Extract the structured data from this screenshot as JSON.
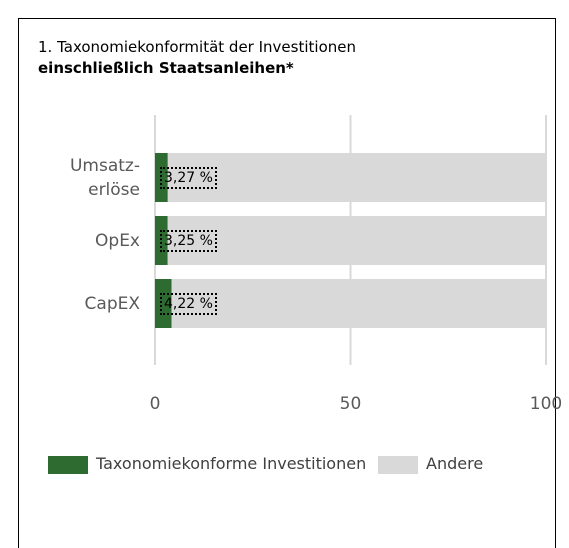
{
  "chart_data": {
    "type": "stacked-bar-horizontal",
    "title": "1. Taxonomiekonformität der Investitionen",
    "subtitle": "einschließlich Staatsanleihen*",
    "categories": [
      "Umsatz-\nerlöse",
      "OpEx",
      "CapEX"
    ],
    "series": [
      {
        "name": "Taxonomiekonforme Investitionen",
        "color": "#2e6b30",
        "values": [
          3.27,
          3.25,
          4.22
        ],
        "value_labels": [
          "3,27 %",
          "3,25 %",
          "4,22 %"
        ]
      },
      {
        "name": "Andere",
        "color": "#d9d9d9",
        "values": [
          96.73,
          96.75,
          95.78
        ]
      }
    ],
    "xlim": [
      0,
      100
    ],
    "xticks": [
      0,
      50,
      100
    ],
    "grid": true,
    "legend": "bottom"
  }
}
